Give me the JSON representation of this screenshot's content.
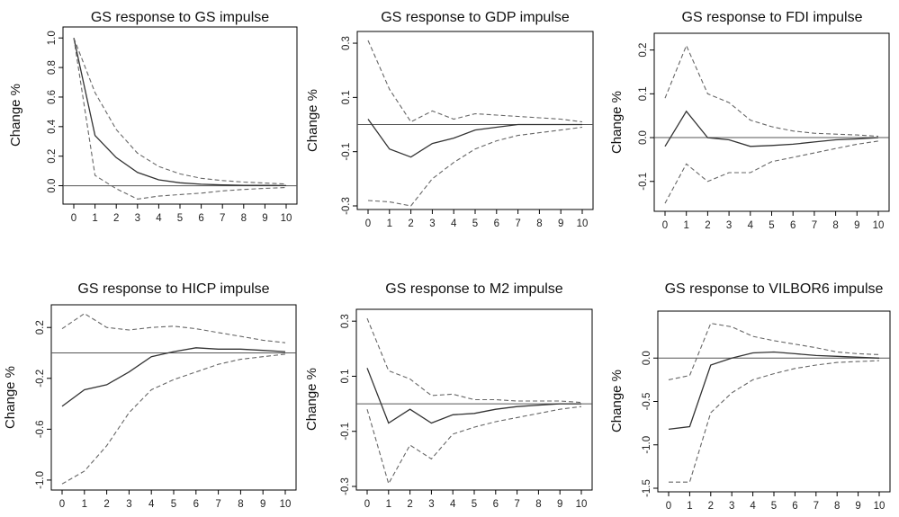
{
  "figure": {
    "colors": {
      "lines": "#333333",
      "bands": "#666666",
      "zero": "#555555"
    }
  },
  "chart_data": [
    {
      "type": "line",
      "title": "GS response to GS impulse",
      "ylabel": "Change %",
      "xlabel": "",
      "x": [
        0,
        1,
        2,
        3,
        4,
        5,
        6,
        7,
        8,
        9,
        10
      ],
      "xticks": [
        "0",
        "1",
        "2",
        "3",
        "4",
        "5",
        "6",
        "7",
        "8",
        "9",
        "10"
      ],
      "yticks": [
        0.0,
        0.2,
        0.4,
        0.6,
        0.8,
        1.0
      ],
      "yticklabels": [
        "0.0",
        "0.2",
        "0.4",
        "0.6",
        "0.8",
        "1.0"
      ],
      "ylim": [
        -0.1,
        1.05
      ],
      "reference_line": 0,
      "series": [
        {
          "role": "response",
          "values": [
            1.0,
            0.34,
            0.19,
            0.09,
            0.04,
            0.02,
            0.01,
            0.005,
            0.003,
            0.002,
            0.001
          ]
        },
        {
          "role": "upper",
          "values": [
            1.0,
            0.63,
            0.38,
            0.22,
            0.13,
            0.08,
            0.05,
            0.035,
            0.025,
            0.018,
            0.012
          ]
        },
        {
          "role": "lower",
          "values": [
            1.0,
            0.07,
            -0.02,
            -0.09,
            -0.07,
            -0.06,
            -0.05,
            -0.035,
            -0.025,
            -0.018,
            -0.012
          ]
        }
      ]
    },
    {
      "type": "line",
      "title": "GS response to GDP impulse",
      "ylabel": "Change %",
      "xlabel": "",
      "x": [
        0,
        1,
        2,
        3,
        4,
        5,
        6,
        7,
        8,
        9,
        10
      ],
      "xticks": [
        "0",
        "1",
        "2",
        "3",
        "4",
        "5",
        "6",
        "7",
        "8",
        "9",
        "10"
      ],
      "yticks": [
        -0.3,
        -0.1,
        0.1,
        0.3
      ],
      "yticklabels": [
        "-0.3",
        "-0.1",
        "0.1",
        "0.3"
      ],
      "ylim": [
        -0.3,
        0.33
      ],
      "reference_line": 0,
      "series": [
        {
          "role": "response",
          "values": [
            0.02,
            -0.09,
            -0.12,
            -0.07,
            -0.05,
            -0.02,
            -0.01,
            0.0,
            0.0,
            0.0,
            0.0
          ]
        },
        {
          "role": "upper",
          "values": [
            0.31,
            0.13,
            0.01,
            0.05,
            0.02,
            0.04,
            0.035,
            0.03,
            0.025,
            0.02,
            0.01
          ]
        },
        {
          "role": "lower",
          "values": [
            -0.28,
            -0.285,
            -0.3,
            -0.2,
            -0.14,
            -0.09,
            -0.06,
            -0.04,
            -0.03,
            -0.02,
            -0.01
          ]
        }
      ]
    },
    {
      "type": "line",
      "title": "GS response to FDI impulse",
      "ylabel": "Change %",
      "xlabel": "",
      "x": [
        0,
        1,
        2,
        3,
        4,
        5,
        6,
        7,
        8,
        9,
        10
      ],
      "xticks": [
        "0",
        "1",
        "2",
        "3",
        "4",
        "5",
        "6",
        "7",
        "8",
        "9",
        "10"
      ],
      "yticks": [
        -0.1,
        0.0,
        0.1,
        0.2
      ],
      "yticklabels": [
        "-0.1",
        "0.0",
        "0.1",
        "0.2"
      ],
      "ylim": [
        -0.16,
        0.23
      ],
      "reference_line": 0,
      "series": [
        {
          "role": "response",
          "values": [
            -0.02,
            0.06,
            0.0,
            -0.005,
            -0.02,
            -0.018,
            -0.015,
            -0.01,
            -0.005,
            -0.003,
            0.0
          ]
        },
        {
          "role": "upper",
          "values": [
            0.09,
            0.21,
            0.1,
            0.08,
            0.04,
            0.025,
            0.015,
            0.01,
            0.008,
            0.006,
            0.003
          ]
        },
        {
          "role": "lower",
          "values": [
            -0.15,
            -0.06,
            -0.1,
            -0.08,
            -0.08,
            -0.055,
            -0.045,
            -0.035,
            -0.025,
            -0.015,
            -0.008
          ]
        }
      ]
    },
    {
      "type": "line",
      "title": "GS response to HICP impulse",
      "ylabel": "Change %",
      "xlabel": "",
      "x": [
        0,
        1,
        2,
        3,
        4,
        5,
        6,
        7,
        8,
        9,
        10
      ],
      "xticks": [
        "0",
        "1",
        "2",
        "3",
        "4",
        "5",
        "6",
        "7",
        "8",
        "9",
        "10"
      ],
      "yticks": [
        -1.0,
        -0.6,
        -0.2,
        0.2
      ],
      "yticklabels": [
        "-1.0",
        "-0.6",
        "-0.2",
        "0.2"
      ],
      "ylim": [
        -1.05,
        0.35
      ],
      "reference_line": 0,
      "series": [
        {
          "role": "response",
          "values": [
            -0.42,
            -0.29,
            -0.25,
            -0.15,
            -0.03,
            0.01,
            0.04,
            0.03,
            0.03,
            0.02,
            0.01
          ]
        },
        {
          "role": "upper",
          "values": [
            0.19,
            0.31,
            0.2,
            0.18,
            0.2,
            0.21,
            0.19,
            0.16,
            0.13,
            0.1,
            0.08
          ]
        },
        {
          "role": "lower",
          "values": [
            -1.03,
            -0.93,
            -0.73,
            -0.47,
            -0.29,
            -0.21,
            -0.15,
            -0.09,
            -0.05,
            -0.03,
            -0.01
          ]
        }
      ]
    },
    {
      "type": "line",
      "title": "GS response to M2 impulse",
      "ylabel": "Change %",
      "xlabel": "",
      "x": [
        0,
        1,
        2,
        3,
        4,
        5,
        6,
        7,
        8,
        9,
        10
      ],
      "xticks": [
        "0",
        "1",
        "2",
        "3",
        "4",
        "5",
        "6",
        "7",
        "8",
        "9",
        "10"
      ],
      "yticks": [
        -0.3,
        -0.1,
        0.1,
        0.3
      ],
      "yticklabels": [
        "-0.3",
        "-0.1",
        "0.1",
        "0.3"
      ],
      "ylim": [
        -0.3,
        0.33
      ],
      "reference_line": 0,
      "series": [
        {
          "role": "response",
          "values": [
            0.13,
            -0.07,
            -0.02,
            -0.07,
            -0.04,
            -0.035,
            -0.02,
            -0.01,
            -0.005,
            0.0,
            0.0
          ]
        },
        {
          "role": "upper",
          "values": [
            0.31,
            0.12,
            0.09,
            0.03,
            0.035,
            0.015,
            0.015,
            0.01,
            0.01,
            0.01,
            0.005
          ]
        },
        {
          "role": "lower",
          "values": [
            -0.02,
            -0.29,
            -0.15,
            -0.2,
            -0.11,
            -0.085,
            -0.065,
            -0.05,
            -0.035,
            -0.02,
            -0.01
          ]
        }
      ]
    },
    {
      "type": "line",
      "title": "GS response to VILBOR6 impulse",
      "ylabel": "Change %",
      "xlabel": "",
      "x": [
        0,
        1,
        2,
        3,
        4,
        5,
        6,
        7,
        8,
        9,
        10
      ],
      "xticks": [
        "0",
        "1",
        "2",
        "3",
        "4",
        "5",
        "6",
        "7",
        "8",
        "9",
        "10"
      ],
      "yticks": [
        -1.5,
        -1.0,
        -0.5,
        0.0
      ],
      "yticklabels": [
        "-1.5",
        "-1.0",
        "-0.5",
        "0.0"
      ],
      "ylim": [
        -1.5,
        0.5
      ],
      "reference_line": 0,
      "series": [
        {
          "role": "response",
          "values": [
            -0.82,
            -0.79,
            -0.08,
            0.0,
            0.06,
            0.07,
            0.05,
            0.03,
            0.02,
            0.01,
            0.0
          ]
        },
        {
          "role": "upper",
          "values": [
            -0.25,
            -0.2,
            0.4,
            0.36,
            0.25,
            0.2,
            0.16,
            0.12,
            0.07,
            0.05,
            0.04
          ]
        },
        {
          "role": "lower",
          "values": [
            -1.43,
            -1.43,
            -0.63,
            -0.4,
            -0.25,
            -0.18,
            -0.12,
            -0.08,
            -0.05,
            -0.04,
            -0.03
          ]
        }
      ]
    }
  ]
}
